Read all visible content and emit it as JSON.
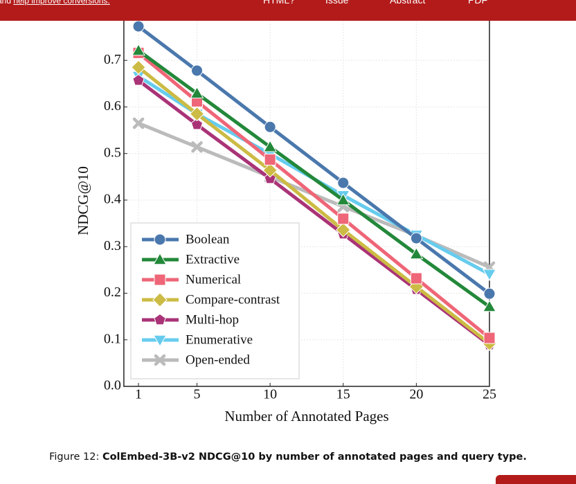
{
  "header": {
    "note": "and ",
    "note_link": "help improve conversions.",
    "nav": [
      "HTML?",
      "Issue",
      "Abstract",
      "PDF"
    ]
  },
  "chart_data": {
    "type": "line",
    "x": [
      1,
      5,
      10,
      15,
      20,
      25
    ],
    "xlim": [
      0,
      25
    ],
    "xticks": [
      1,
      5,
      10,
      15,
      20,
      25
    ],
    "ylim": [
      0,
      0.785
    ],
    "yticks": [
      {
        "value": 0,
        "label": "0.0"
      },
      0.1,
      0.2,
      0.3,
      0.4,
      0.5,
      0.6,
      0.7
    ],
    "xlabel": "Number of Annotated Pages",
    "ylabel": "NDCG@10",
    "grid": true,
    "legend": "lower left",
    "series": [
      {
        "name": "Boolean",
        "color": "#4a78ad",
        "marker": "circle",
        "values": [
          0.773,
          0.678,
          0.557,
          0.437,
          0.318,
          0.199
        ]
      },
      {
        "name": "Extractive",
        "color": "#23883a",
        "marker": "triangle-up",
        "values": [
          0.721,
          0.629,
          0.514,
          0.4,
          0.284,
          0.171
        ]
      },
      {
        "name": "Numerical",
        "color": "#ee6677",
        "marker": "square",
        "values": [
          0.716,
          0.612,
          0.487,
          0.36,
          0.232,
          0.104
        ]
      },
      {
        "name": "Compare-contrast",
        "color": "#ccbb44",
        "marker": "diamond",
        "values": [
          0.685,
          0.585,
          0.464,
          0.336,
          0.214,
          0.092
        ]
      },
      {
        "name": "Multi-hop",
        "color": "#aa3377",
        "marker": "pentagon",
        "values": [
          0.657,
          0.562,
          0.446,
          0.327,
          0.208,
          0.089
        ]
      },
      {
        "name": "Enumerative",
        "color": "#66ccee",
        "marker": "triangle-down",
        "values": [
          0.666,
          0.585,
          0.499,
          0.41,
          0.325,
          0.241
        ]
      },
      {
        "name": "Open-ended",
        "color": "#bbbbbb",
        "marker": "x",
        "values": [
          0.565,
          0.514,
          0.45,
          0.386,
          0.324,
          0.256
        ]
      }
    ]
  },
  "caption": {
    "label": "Figure 12: ",
    "text": "ColEmbed-3B-v2 NDCG@10 by number of annotated pages and query type."
  }
}
